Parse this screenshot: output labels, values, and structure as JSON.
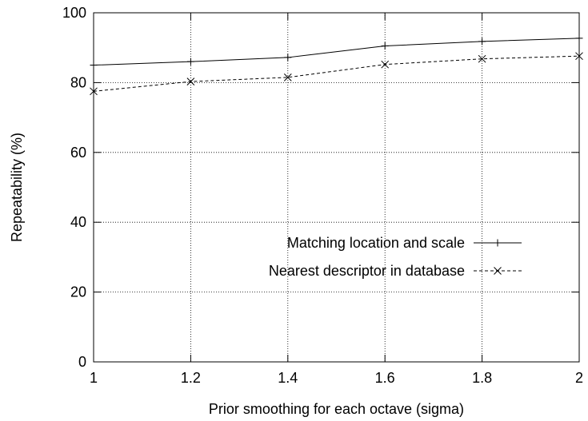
{
  "chart_data": {
    "type": "line",
    "xlabel": "Prior smoothing for each octave (sigma)",
    "ylabel": "Repeatability (%)",
    "xlim": [
      1,
      2
    ],
    "ylim": [
      0,
      100
    ],
    "xticks": [
      "1",
      "1.2",
      "1.4",
      "1.6",
      "1.8",
      "2"
    ],
    "yticks": [
      "0",
      "20",
      "40",
      "60",
      "80",
      "100"
    ],
    "grid": true,
    "legend_position": "center-right",
    "x": [
      1.0,
      1.2,
      1.4,
      1.6,
      1.8,
      2.0
    ],
    "series": [
      {
        "name": "Matching location and scale",
        "values": [
          85.0,
          86.0,
          87.2,
          90.5,
          91.8,
          92.7
        ],
        "line_style": "solid",
        "marker": "plus",
        "color": "#000000"
      },
      {
        "name": "Nearest descriptor in database",
        "values": [
          77.5,
          80.3,
          81.5,
          85.2,
          86.8,
          87.6
        ],
        "line_style": "dashed",
        "marker": "cross",
        "color": "#000000"
      }
    ]
  }
}
